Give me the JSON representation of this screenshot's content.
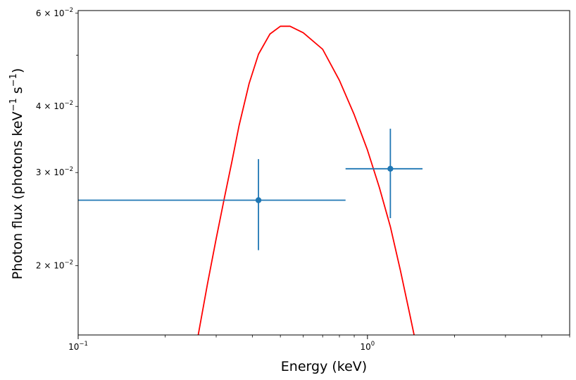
{
  "chart_data": {
    "type": "scatter",
    "xlabel": "Energy (keV)",
    "ylabel": {
      "prefix": "Photon flux (photons keV",
      "exp1": "−1",
      "middle": " s",
      "exp2": "−1",
      "suffix": ")"
    },
    "xscale": "log",
    "yscale": "log",
    "xlim": [
      0.1,
      5.0
    ],
    "ylim": [
      0.0148,
      0.0607
    ],
    "grid": false,
    "x_ticks": [
      {
        "value": 0.1,
        "base": "10",
        "exp": "−1"
      },
      {
        "value": 1.0,
        "base": "10",
        "exp": "0"
      }
    ],
    "y_ticks": [
      {
        "value": 0.02,
        "coef": "2",
        "exp": "−2"
      },
      {
        "value": 0.03,
        "coef": "3",
        "exp": "−2"
      },
      {
        "value": 0.04,
        "coef": "4",
        "exp": "−2"
      },
      {
        "value": 0.06,
        "coef": "6",
        "exp": "−2"
      }
    ],
    "points": [
      {
        "x": 0.42,
        "y": 0.0266,
        "xerr_low": 0.1,
        "xerr_high": 0.84,
        "yerr_low": 0.0214,
        "yerr_high": 0.0318
      },
      {
        "x": 1.2,
        "y": 0.0305,
        "xerr_low": 0.84,
        "xerr_high": 1.55,
        "yerr_low": 0.0246,
        "yerr_high": 0.0363
      }
    ],
    "model_curve": [
      {
        "x": 0.26,
        "y": 0.0148
      },
      {
        "x": 0.28,
        "y": 0.0185
      },
      {
        "x": 0.3,
        "y": 0.0225
      },
      {
        "x": 0.32,
        "y": 0.0268
      },
      {
        "x": 0.34,
        "y": 0.0315
      },
      {
        "x": 0.36,
        "y": 0.0368
      },
      {
        "x": 0.39,
        "y": 0.0442
      },
      {
        "x": 0.42,
        "y": 0.0502
      },
      {
        "x": 0.46,
        "y": 0.0548
      },
      {
        "x": 0.5,
        "y": 0.0567
      },
      {
        "x": 0.54,
        "y": 0.0567
      },
      {
        "x": 0.6,
        "y": 0.0551
      },
      {
        "x": 0.7,
        "y": 0.0513
      },
      {
        "x": 0.8,
        "y": 0.0448
      },
      {
        "x": 0.9,
        "y": 0.0386
      },
      {
        "x": 1.0,
        "y": 0.0331
      },
      {
        "x": 1.1,
        "y": 0.0281
      },
      {
        "x": 1.2,
        "y": 0.0237
      },
      {
        "x": 1.3,
        "y": 0.0196
      },
      {
        "x": 1.4,
        "y": 0.0162
      },
      {
        "x": 1.45,
        "y": 0.0148
      }
    ],
    "colors": {
      "points": "#1f77b4",
      "model": "#ff0000",
      "axes": "#000000"
    }
  }
}
